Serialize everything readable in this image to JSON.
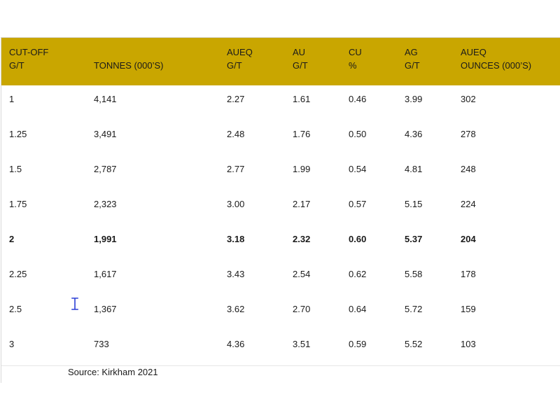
{
  "table": {
    "headers": [
      {
        "line1": "CUT-OFF",
        "line2": "G/T"
      },
      {
        "line1": "",
        "line2": "TONNES (000’S)"
      },
      {
        "line1": "AUEQ",
        "line2": "G/T"
      },
      {
        "line1": "AU",
        "line2": "G/T"
      },
      {
        "line1": "CU",
        "line2": "%"
      },
      {
        "line1": "AG",
        "line2": "G/T"
      },
      {
        "line1": "AUEQ",
        "line2": "OUNCES (000’S)"
      }
    ],
    "rows": [
      {
        "cutoff": "1",
        "tonnes": "4,141",
        "aueq_gt": "2.27",
        "au_gt": "1.61",
        "cu_pct": "0.46",
        "ag_gt": "3.99",
        "aueq_oz": "302",
        "bold": false
      },
      {
        "cutoff": "1.25",
        "tonnes": "3,491",
        "aueq_gt": "2.48",
        "au_gt": "1.76",
        "cu_pct": "0.50",
        "ag_gt": "4.36",
        "aueq_oz": "278",
        "bold": false
      },
      {
        "cutoff": "1.5",
        "tonnes": "2,787",
        "aueq_gt": "2.77",
        "au_gt": "1.99",
        "cu_pct": "0.54",
        "ag_gt": "4.81",
        "aueq_oz": "248",
        "bold": false
      },
      {
        "cutoff": "1.75",
        "tonnes": "2,323",
        "aueq_gt": "3.00",
        "au_gt": "2.17",
        "cu_pct": "0.57",
        "ag_gt": "5.15",
        "aueq_oz": "224",
        "bold": false
      },
      {
        "cutoff": "2",
        "tonnes": "1,991",
        "aueq_gt": "3.18",
        "au_gt": "2.32",
        "cu_pct": "0.60",
        "ag_gt": "5.37",
        "aueq_oz": "204",
        "bold": true
      },
      {
        "cutoff": "2.25",
        "tonnes": "1,617",
        "aueq_gt": "3.43",
        "au_gt": "2.54",
        "cu_pct": "0.62",
        "ag_gt": "5.58",
        "aueq_oz": "178",
        "bold": false
      },
      {
        "cutoff": "2.5",
        "tonnes": "1,367",
        "aueq_gt": "3.62",
        "au_gt": "2.70",
        "cu_pct": "0.64",
        "ag_gt": "5.72",
        "aueq_oz": "159",
        "bold": false
      },
      {
        "cutoff": "3",
        "tonnes": "733",
        "aueq_gt": "4.36",
        "au_gt": "3.51",
        "cu_pct": "0.59",
        "ag_gt": "5.52",
        "aueq_oz": "103",
        "bold": false
      }
    ]
  },
  "source_note": "Source: Kirkham 2021",
  "colors": {
    "header_bg": "#c9a600",
    "cursor": "#2b3fd6"
  },
  "icons": {
    "cursor": "i-beam-cursor-icon"
  }
}
